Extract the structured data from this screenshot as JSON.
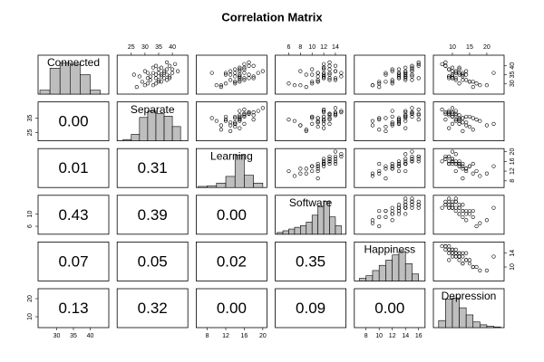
{
  "chart_data": {
    "type": "pairs",
    "title": "Correlation Matrix",
    "variables": [
      {
        "name": "Connected",
        "lim": [
          25,
          45
        ],
        "ticks": [
          30,
          35,
          40
        ],
        "hist": {
          "bins": [
            25,
            28,
            31,
            34,
            37,
            40,
            43
          ],
          "counts": [
            6,
            40,
            48,
            46,
            30,
            6
          ],
          "ylim": [
            0,
            60
          ]
        }
      },
      {
        "name": "Separate",
        "lim": [
          20.5,
          45
        ],
        "ticks": [
          25,
          30,
          35,
          40
        ],
        "hist": {
          "bins": [
            22,
            25,
            28,
            31,
            34,
            37,
            40,
            43
          ],
          "counts": [
            2,
            10,
            36,
            46,
            42,
            38,
            22
          ],
          "ylim": [
            0,
            60
          ]
        }
      },
      {
        "name": "Learning",
        "lim": [
          6,
          20.5
        ],
        "ticks": [
          8,
          12,
          16,
          20
        ],
        "hist": {
          "bins": [
            6,
            8,
            10,
            12,
            14,
            16,
            18,
            20
          ],
          "counts": [
            2,
            3,
            8,
            20,
            58,
            22,
            8
          ],
          "ylim": [
            0,
            70
          ]
        }
      },
      {
        "name": "Software",
        "lim": [
          4,
          15.5
        ],
        "ticks": [
          6,
          8,
          10,
          12,
          14
        ],
        "hist": {
          "bins": [
            4,
            5,
            6,
            7,
            8,
            9,
            10,
            11,
            12,
            13,
            14,
            15
          ],
          "counts": [
            2,
            4,
            6,
            8,
            10,
            14,
            22,
            32,
            38,
            20,
            10
          ],
          "ylim": [
            0,
            45
          ]
        }
      },
      {
        "name": "Happiness",
        "lim": [
          6.5,
          16.7
        ],
        "ticks": [
          8,
          10,
          12,
          14,
          16
        ],
        "hist": {
          "bins": [
            7,
            8,
            9,
            10,
            11,
            12,
            13,
            14,
            15,
            16
          ],
          "counts": [
            3,
            6,
            12,
            18,
            24,
            30,
            34,
            20,
            8
          ],
          "ylim": [
            0,
            45
          ]
        }
      },
      {
        "name": "Depression",
        "lim": [
          5,
          24.5
        ],
        "ticks": [
          10,
          15,
          20
        ],
        "hist": {
          "bins": [
            6,
            8,
            10,
            12,
            14,
            16,
            18,
            20,
            22,
            24
          ],
          "counts": [
            10,
            40,
            42,
            28,
            18,
            8,
            4,
            2,
            1
          ],
          "ylim": [
            0,
            55
          ]
        }
      }
    ],
    "right_ticks": {
      "0": [
        30,
        35,
        40
      ],
      "2": [
        8,
        12,
        16,
        20
      ],
      "4": [
        10,
        14
      ]
    },
    "left_ticks": {
      "1": [
        25,
        35
      ],
      "3": [
        6,
        10
      ],
      "5": [
        10,
        20
      ]
    },
    "correlations": [
      [],
      [
        0.0
      ],
      [
        0.01,
        0.31
      ],
      [
        0.43,
        0.39,
        0.0
      ],
      [
        0.07,
        0.05,
        0.02,
        0.35
      ],
      [
        0.13,
        0.32,
        0.0,
        0.09,
        0.0
      ]
    ],
    "correlation_labels": [
      [],
      [
        "0.00"
      ],
      [
        "0.01",
        "0.31"
      ],
      [
        "0.43",
        "0.39",
        "0.00"
      ],
      [
        "0.07",
        "0.05",
        "0.02",
        "0.35"
      ],
      [
        "0.13",
        "0.32",
        "0.00",
        "0.09",
        "0.00"
      ]
    ],
    "observations": [
      [
        34,
        36,
        15,
        12,
        14,
        10
      ],
      [
        30,
        31,
        14,
        10,
        12,
        12
      ],
      [
        38,
        38,
        16,
        13,
        15,
        9
      ],
      [
        36,
        33,
        12,
        11,
        13,
        11
      ],
      [
        32,
        35,
        15,
        13,
        14,
        13
      ],
      [
        40,
        39,
        17,
        14,
        15,
        8
      ],
      [
        28,
        27,
        11,
        9,
        10,
        16
      ],
      [
        35,
        34,
        15,
        12,
        13,
        12
      ],
      [
        37,
        30,
        13,
        8,
        12,
        14
      ],
      [
        33,
        37,
        18,
        14,
        16,
        9
      ],
      [
        31,
        29,
        14,
        11,
        11,
        15
      ],
      [
        39,
        36,
        16,
        12,
        15,
        10
      ],
      [
        36,
        40,
        19,
        15,
        14,
        11
      ],
      [
        29,
        33,
        10,
        7,
        9,
        18
      ],
      [
        34,
        28,
        15,
        12,
        14,
        9
      ],
      [
        38,
        35,
        14,
        10,
        13,
        12
      ],
      [
        35,
        38,
        17,
        13,
        15,
        10
      ],
      [
        32,
        32,
        13,
        11,
        12,
        14
      ],
      [
        41,
        41,
        16,
        12,
        16,
        7
      ],
      [
        30,
        34,
        12,
        6,
        10,
        17
      ],
      [
        37,
        37,
        15,
        14,
        14,
        11
      ],
      [
        33,
        31,
        16,
        13,
        13,
        10
      ],
      [
        36,
        35,
        9,
        11,
        11,
        13
      ],
      [
        34,
        39,
        18,
        15,
        15,
        9
      ],
      [
        39,
        33,
        15,
        12,
        14,
        12
      ],
      [
        31,
        36,
        14,
        10,
        12,
        15
      ],
      [
        35,
        26,
        13,
        9,
        11,
        13
      ],
      [
        42,
        38,
        17,
        13,
        16,
        8
      ],
      [
        33,
        34,
        15,
        12,
        13,
        11
      ],
      [
        37,
        42,
        20,
        14,
        15,
        10
      ],
      [
        29,
        30,
        11,
        8,
        9,
        20
      ],
      [
        36,
        37,
        16,
        13,
        14,
        12
      ],
      [
        34,
        32,
        14,
        11,
        13,
        13
      ],
      [
        38,
        40,
        15,
        12,
        12,
        9
      ],
      [
        32,
        38,
        16,
        14,
        15,
        11
      ],
      [
        35,
        36,
        12,
        10,
        14,
        14
      ],
      [
        40,
        34,
        18,
        13,
        16,
        8
      ],
      [
        31,
        35,
        15,
        11,
        10,
        16
      ],
      [
        36,
        31,
        14,
        12,
        13,
        22
      ],
      [
        33,
        39,
        17,
        12,
        14,
        10
      ]
    ]
  }
}
